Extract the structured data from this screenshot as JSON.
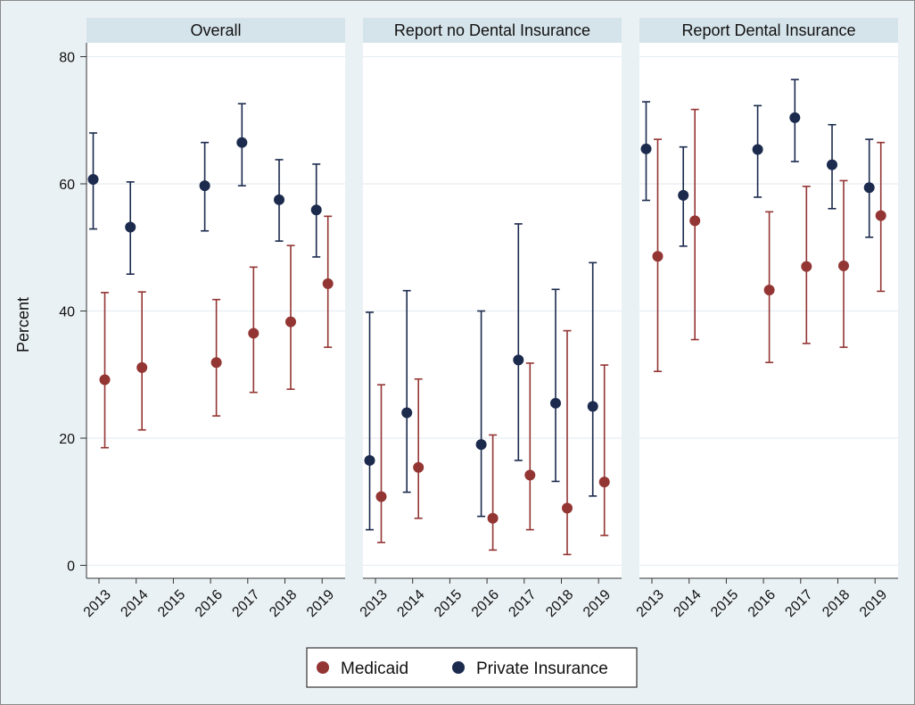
{
  "chart_data": {
    "type": "scatter",
    "subtype": "point-with-error-bars",
    "ylabel": "Percent",
    "ylim": [
      0,
      80
    ],
    "yticks": [
      0,
      20,
      40,
      60,
      80
    ],
    "grid": true,
    "legend_position": "bottom-center",
    "categories": [
      "2013",
      "2014",
      "2015",
      "2016",
      "2017",
      "2018",
      "2019"
    ],
    "colors": {
      "Medicaid": "#933533",
      "Private Insurance": "#1b2a4d"
    },
    "legend": [
      "Medicaid",
      "Private Insurance"
    ],
    "panels": [
      {
        "title": "Overall",
        "series": [
          {
            "name": "Medicaid",
            "values": [
              29.2,
              31.1,
              null,
              31.9,
              36.5,
              38.3,
              44.3
            ],
            "lower": [
              18.5,
              21.3,
              null,
              23.5,
              27.2,
              27.7,
              34.3
            ],
            "upper": [
              42.9,
              43.0,
              null,
              41.8,
              46.9,
              50.3,
              54.9
            ]
          },
          {
            "name": "Private Insurance",
            "values": [
              60.7,
              53.2,
              null,
              59.7,
              66.5,
              57.5,
              55.9
            ],
            "lower": [
              52.9,
              45.8,
              null,
              52.6,
              59.7,
              51.0,
              48.5
            ],
            "upper": [
              68.0,
              60.3,
              null,
              66.5,
              72.6,
              63.8,
              63.1
            ]
          }
        ]
      },
      {
        "title": "Report no Dental Insurance",
        "series": [
          {
            "name": "Medicaid",
            "values": [
              10.8,
              15.4,
              null,
              7.4,
              14.2,
              9.0,
              13.1
            ],
            "lower": [
              3.6,
              7.4,
              null,
              2.4,
              5.6,
              1.7,
              4.7
            ],
            "upper": [
              28.4,
              29.3,
              null,
              20.5,
              31.8,
              36.9,
              31.5
            ]
          },
          {
            "name": "Private Insurance",
            "values": [
              16.5,
              24.0,
              null,
              19.0,
              32.3,
              25.5,
              25.0
            ],
            "lower": [
              5.6,
              11.5,
              null,
              7.7,
              16.5,
              13.2,
              10.9
            ],
            "upper": [
              39.8,
              43.2,
              null,
              40.0,
              53.7,
              43.4,
              47.6
            ]
          }
        ]
      },
      {
        "title": "Report Dental Insurance",
        "series": [
          {
            "name": "Medicaid",
            "values": [
              48.6,
              54.2,
              null,
              43.3,
              47.0,
              47.1,
              55.0
            ],
            "lower": [
              30.5,
              35.5,
              null,
              31.9,
              34.9,
              34.3,
              43.1
            ],
            "upper": [
              67.0,
              71.7,
              null,
              55.6,
              59.6,
              60.5,
              66.5
            ]
          },
          {
            "name": "Private Insurance",
            "values": [
              65.5,
              58.2,
              null,
              65.4,
              70.4,
              63.0,
              59.4
            ],
            "lower": [
              57.4,
              50.2,
              null,
              57.9,
              63.5,
              56.1,
              51.6
            ],
            "upper": [
              72.9,
              65.8,
              null,
              72.3,
              76.4,
              69.3,
              67.0
            ]
          }
        ]
      }
    ]
  }
}
